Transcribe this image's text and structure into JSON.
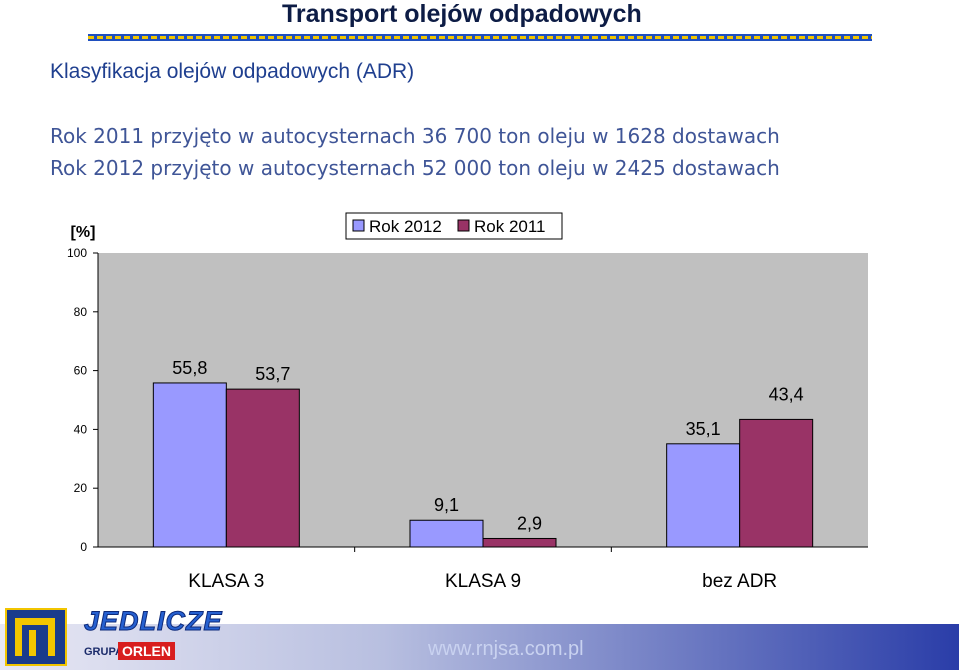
{
  "slide": {
    "title": "Transport olejów odpadowych",
    "subtitle": "Klasyfikacja olejów odpadowych (ADR)",
    "stat_2011": "Rok 2011 przyjęto w autocysternach 36 700 ton oleju w 1628 dostawach",
    "stat_2012": "Rok 2012 przyjęto w autocysternach 52 000 ton oleju w 2425 dostawach"
  },
  "footer": {
    "brand": "JEDLICZE",
    "group_label": "GRUPA",
    "group_brand": "ORLEN",
    "website": "www.rnjsa.com.pl"
  },
  "colors": {
    "title": "#0d1c45",
    "subtitle": "#1f3f8f",
    "stats": "#3f5597",
    "plot_bg": "#c0c0c0",
    "series_2012": "#9999ff",
    "series_2011": "#993366",
    "rule_yellow": "#f2c500",
    "rule_blue": "#1f4fbf"
  },
  "chart_data": {
    "type": "bar",
    "ylabel": "[%]",
    "ylim": [
      0,
      100
    ],
    "yticks": [
      0,
      20,
      40,
      60,
      80,
      100
    ],
    "grid": false,
    "legend_position": "top-center",
    "categories": [
      "KLASA 3",
      "KLASA 9",
      "bez ADR"
    ],
    "series": [
      {
        "name": "Rok 2012",
        "values": [
          55.8,
          9.1,
          35.1
        ],
        "labels": [
          "55,8",
          "9,1",
          "35,1"
        ],
        "color": "#9999ff"
      },
      {
        "name": "Rok 2011",
        "values": [
          53.7,
          2.9,
          43.4
        ],
        "labels": [
          "53,7",
          "2,9",
          "43,4"
        ],
        "color": "#993366"
      }
    ]
  }
}
